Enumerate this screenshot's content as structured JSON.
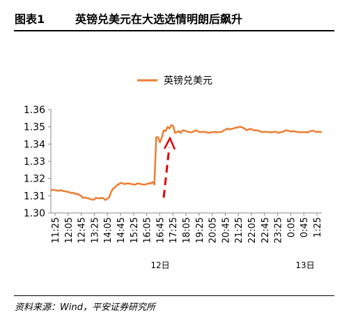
{
  "header": {
    "figure_label": "图表1",
    "title": "英镑兑美元在大选选情明朗后飙升"
  },
  "footer": {
    "source": "资料来源：Wind，平安证券研究所"
  },
  "colors": {
    "series": "#ED7D31",
    "annotation": "#E00000",
    "axis": "#888888"
  },
  "chart_data": {
    "type": "line",
    "title": "",
    "xlabel": "",
    "ylabel": "",
    "ylim": [
      1.3,
      1.36
    ],
    "yticks": [
      "1.30",
      "1.31",
      "1.32",
      "1.33",
      "1.34",
      "1.35",
      "1.36"
    ],
    "xticks": [
      "11:25",
      "12:05",
      "12:45",
      "13:25",
      "14:05",
      "14:45",
      "15:25",
      "16:05",
      "16:45",
      "17:25",
      "18:05",
      "19:25",
      "20:05",
      "20:45",
      "21:25",
      "22:05",
      "22:45",
      "23:25",
      "0:05",
      "0:45",
      "1:25"
    ],
    "date_labels": [
      "12日",
      "13日"
    ],
    "grid": false,
    "legend": "top-center",
    "annotation": "dashed upward arrow at the post-election jump",
    "series": [
      {
        "name": "英镑兑美元",
        "values": [
          1.313,
          1.3135,
          1.3133,
          1.3131,
          1.3128,
          1.3132,
          1.313,
          1.3126,
          1.3125,
          1.3122,
          1.312,
          1.3115,
          1.3118,
          1.311,
          1.3112,
          1.3105,
          1.31,
          1.3088,
          1.309,
          1.3086,
          1.3085,
          1.308,
          1.3078,
          1.3077,
          1.3088,
          1.3085,
          1.3085,
          1.3087,
          1.3085,
          1.3075,
          1.3082,
          1.309,
          1.312,
          1.314,
          1.3148,
          1.316,
          1.3165,
          1.3175,
          1.3172,
          1.3168,
          1.317,
          1.3172,
          1.317,
          1.3168,
          1.3165,
          1.3165,
          1.3172,
          1.317,
          1.3168,
          1.3165,
          1.3165,
          1.3168,
          1.3172,
          1.317,
          1.318,
          1.3165,
          1.344,
          1.344,
          1.341,
          1.344,
          1.348,
          1.3475,
          1.35,
          1.349,
          1.351,
          1.3505,
          1.3465,
          1.347,
          1.3475,
          1.3465,
          1.348,
          1.3478,
          1.3475,
          1.347,
          1.347,
          1.3468,
          1.3475,
          1.348,
          1.3475,
          1.347,
          1.347,
          1.3472,
          1.347,
          1.3468,
          1.3465,
          1.3468,
          1.347,
          1.347,
          1.3468,
          1.347,
          1.347,
          1.3472,
          1.348,
          1.3485,
          1.349,
          1.3485,
          1.3488,
          1.349,
          1.3495,
          1.3495,
          1.35,
          1.35,
          1.3495,
          1.349,
          1.348,
          1.3485,
          1.3488,
          1.3485,
          1.348,
          1.348,
          1.3478,
          1.3475,
          1.347,
          1.347,
          1.3472,
          1.347,
          1.347,
          1.3468,
          1.347,
          1.3472,
          1.347,
          1.3465,
          1.347,
          1.347,
          1.3475,
          1.348,
          1.3478,
          1.3475,
          1.3472,
          1.3475,
          1.3472,
          1.347,
          1.347,
          1.3468,
          1.347,
          1.347,
          1.3468,
          1.347,
          1.3475,
          1.3478,
          1.3475,
          1.347,
          1.3472,
          1.347,
          1.347
        ]
      }
    ]
  }
}
